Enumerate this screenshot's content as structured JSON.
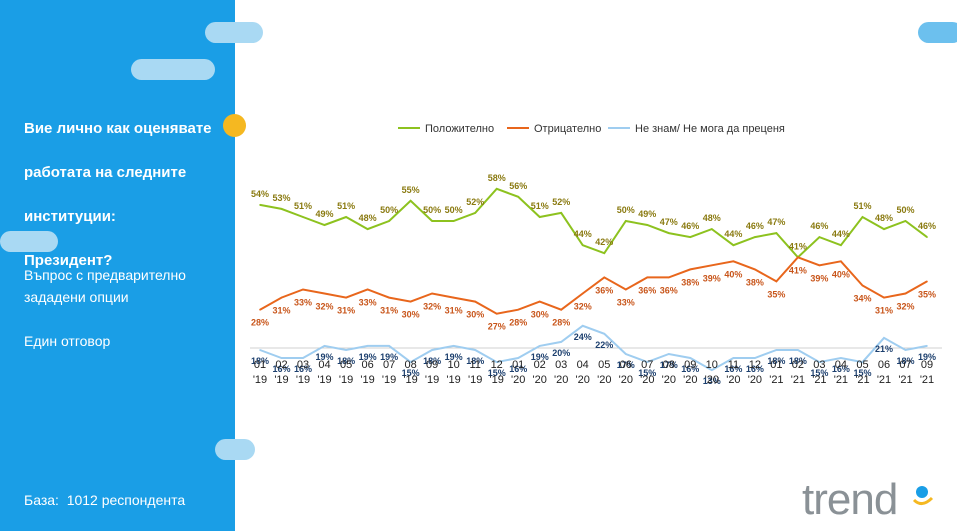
{
  "sidebar": {
    "question": "Вие лично как оценявате работата на следните институции: Президент?",
    "question_lines": [
      "Вие лично как оценявате",
      "работата на следните",
      "институции:",
      "Президент?"
    ],
    "type_line1": "Въпрос с предварително",
    "type_line2": "зададени опции",
    "answer_type": "Един отговор",
    "base_label": "База:",
    "base_value": "1012 респондента"
  },
  "logo": {
    "text": "trend"
  },
  "colors": {
    "panel": "#1a9ee6",
    "positive": "#8dc21f",
    "negative": "#e8661c",
    "dont_know": "#9fcdf0",
    "label_positive": "#8a7a10",
    "label_negative": "#c8551a",
    "label_dont_know": "#1c3f6e"
  },
  "chart_data": {
    "type": "line",
    "title": "",
    "xlabel": "",
    "ylabel": "",
    "ylim": [
      0,
      70
    ],
    "grid": false,
    "legend_position": "top",
    "categories": [
      [
        "01",
        "'19"
      ],
      [
        "02",
        "'19"
      ],
      [
        "03",
        "'19"
      ],
      [
        "04",
        "'19"
      ],
      [
        "05",
        "'19"
      ],
      [
        "06",
        "'19"
      ],
      [
        "07",
        "'19"
      ],
      [
        "08",
        "'19"
      ],
      [
        "09",
        "'19"
      ],
      [
        "10",
        "'19"
      ],
      [
        "11",
        "'19"
      ],
      [
        "12",
        "'19"
      ],
      [
        "01",
        "'20"
      ],
      [
        "02",
        "'20"
      ],
      [
        "03",
        "'20"
      ],
      [
        "04",
        "'20"
      ],
      [
        "05",
        "'20"
      ],
      [
        "06",
        "'20"
      ],
      [
        "07",
        "'20"
      ],
      [
        "08",
        "'20"
      ],
      [
        "09",
        "'20"
      ],
      [
        "10",
        "'20"
      ],
      [
        "11",
        "'20"
      ],
      [
        "12",
        "'20"
      ],
      [
        "01",
        "'21"
      ],
      [
        "02",
        "'21"
      ],
      [
        "03",
        "'21"
      ],
      [
        "04",
        "'21"
      ],
      [
        "05",
        "'21"
      ],
      [
        "06",
        "'21"
      ],
      [
        "07",
        "'21"
      ],
      [
        "09",
        "'21"
      ]
    ],
    "series": [
      {
        "name": "Положително",
        "color": "#8dc21f",
        "values": [
          54,
          53,
          51,
          49,
          51,
          48,
          50,
          55,
          50,
          50,
          52,
          58,
          56,
          51,
          52,
          44,
          42,
          50,
          49,
          47,
          46,
          48,
          44,
          46,
          47,
          41,
          46,
          44,
          51,
          48,
          50,
          46
        ],
        "labels": [
          "54%",
          "53%",
          "51%",
          "49%",
          "51%",
          "48%",
          "50%",
          "55%",
          "50%",
          "50%",
          "52%",
          "58%",
          "56%",
          "51%",
          "52%",
          "44%",
          "42%",
          "50%",
          "49%",
          "47%",
          "46%",
          "48%",
          "44%",
          "46%",
          "47%",
          "41%",
          "46%",
          "44%",
          "51%",
          "48%",
          "50%",
          "46%"
        ]
      },
      {
        "name": "Отрицателно",
        "color": "#e8661c",
        "values": [
          28,
          31,
          33,
          32,
          31,
          33,
          31,
          30,
          32,
          31,
          30,
          27,
          28,
          30,
          28,
          32,
          36,
          33,
          36,
          36,
          38,
          39,
          40,
          38,
          35,
          41,
          39,
          40,
          34,
          31,
          32,
          35
        ],
        "labels": [
          "28%",
          "31%",
          "33%",
          "32%",
          "31%",
          "33%",
          "31%",
          "30%",
          "32%",
          "31%",
          "30%",
          "27%",
          "28%",
          "30%",
          "28%",
          "32%",
          "36%",
          "33%",
          "36%",
          "36%",
          "38%",
          "39%",
          "40%",
          "38%",
          "35%",
          "41%",
          "39%",
          "40%",
          "34%",
          "31%",
          "32%",
          "35%"
        ]
      },
      {
        "name": "Не знам/ Не мога да преценя",
        "color": "#9fcdf0",
        "values": [
          18,
          16,
          16,
          19,
          18,
          19,
          19,
          15,
          18,
          19,
          18,
          15,
          16,
          19,
          20,
          24,
          22,
          17,
          15,
          17,
          16,
          13,
          16,
          16,
          18,
          18,
          15,
          16,
          15,
          21,
          18,
          19
        ],
        "labels": [
          "18%",
          "16%",
          "16%",
          "19%",
          "18%",
          "19%",
          "19%",
          "15%",
          "18%",
          "19%",
          "18%",
          "15%",
          "16%",
          "19%",
          "20%",
          "24%",
          "22%",
          "17%",
          "15%",
          "17%",
          "16%",
          "13%",
          "16%",
          "16%",
          "18%",
          "18%",
          "15%",
          "16%",
          "15%",
          "21%",
          "18%",
          "19%"
        ]
      }
    ]
  }
}
